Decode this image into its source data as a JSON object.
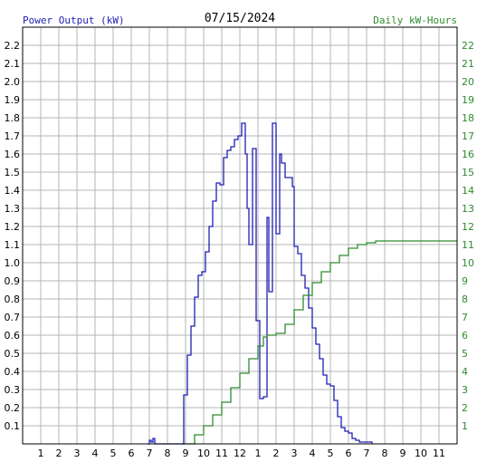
{
  "chart_data": {
    "type": "line",
    "title": "07/15/2024",
    "y_left_label": "Power Output (kW)",
    "y_right_label": "Daily kW-Hours",
    "x_tick_labels": [
      "1",
      "2",
      "3",
      "4",
      "5",
      "6",
      "7",
      "8",
      "9",
      "10",
      "11",
      "12",
      "1",
      "2",
      "3",
      "4",
      "5",
      "6",
      "7",
      "8",
      "9",
      "10",
      "11"
    ],
    "y_left_ticks": [
      "0.1",
      "0.2",
      "0.3",
      "0.4",
      "0.5",
      "0.6",
      "0.7",
      "0.8",
      "0.9",
      "1.0",
      "1.1",
      "1.2",
      "1.3",
      "1.4",
      "1.5",
      "1.6",
      "1.7",
      "1.8",
      "1.9",
      "2.0",
      "2.1",
      "2.2"
    ],
    "y_right_ticks": [
      "1",
      "2",
      "3",
      "4",
      "5",
      "6",
      "7",
      "8",
      "9",
      "10",
      "11",
      "12",
      "13",
      "14",
      "15",
      "16",
      "17",
      "18",
      "19",
      "20",
      "21",
      "22"
    ],
    "x_range_hours": [
      0,
      24
    ],
    "y_left_range": [
      0,
      2.3
    ],
    "y_right_range": [
      0,
      23
    ],
    "grid": true,
    "series": [
      {
        "name": "Power Output (kW)",
        "axis": "left",
        "color": "#1f1fb4",
        "points": [
          [
            6.9,
            0
          ],
          [
            7.0,
            0.02
          ],
          [
            7.1,
            0.01
          ],
          [
            7.2,
            0.03
          ],
          [
            7.3,
            0
          ],
          [
            8.8,
            0
          ],
          [
            8.9,
            0.27
          ],
          [
            9.1,
            0.49
          ],
          [
            9.3,
            0.65
          ],
          [
            9.5,
            0.81
          ],
          [
            9.7,
            0.93
          ],
          [
            9.9,
            0.95
          ],
          [
            10.1,
            1.06
          ],
          [
            10.3,
            1.2
          ],
          [
            10.5,
            1.34
          ],
          [
            10.7,
            1.44
          ],
          [
            10.9,
            1.43
          ],
          [
            11.1,
            1.58
          ],
          [
            11.3,
            1.62
          ],
          [
            11.5,
            1.64
          ],
          [
            11.7,
            1.68
          ],
          [
            11.9,
            1.7
          ],
          [
            12.1,
            1.77
          ],
          [
            12.3,
            1.6
          ],
          [
            12.4,
            1.3
          ],
          [
            12.5,
            1.1
          ],
          [
            12.7,
            1.63
          ],
          [
            12.9,
            0.68
          ],
          [
            13.1,
            0.25
          ],
          [
            13.3,
            0.26
          ],
          [
            13.5,
            1.25
          ],
          [
            13.6,
            0.84
          ],
          [
            13.8,
            1.77
          ],
          [
            14.0,
            1.16
          ],
          [
            14.2,
            1.6
          ],
          [
            14.3,
            1.55
          ],
          [
            14.5,
            1.47
          ],
          [
            14.7,
            1.47
          ],
          [
            14.9,
            1.42
          ],
          [
            15.0,
            1.09
          ],
          [
            15.2,
            1.05
          ],
          [
            15.4,
            0.93
          ],
          [
            15.6,
            0.86
          ],
          [
            15.8,
            0.75
          ],
          [
            16.0,
            0.64
          ],
          [
            16.2,
            0.55
          ],
          [
            16.4,
            0.47
          ],
          [
            16.6,
            0.38
          ],
          [
            16.8,
            0.33
          ],
          [
            17.0,
            0.32
          ],
          [
            17.2,
            0.24
          ],
          [
            17.4,
            0.15
          ],
          [
            17.6,
            0.09
          ],
          [
            17.8,
            0.07
          ],
          [
            18.0,
            0.06
          ],
          [
            18.2,
            0.03
          ],
          [
            18.4,
            0.02
          ],
          [
            18.6,
            0.01
          ],
          [
            19.0,
            0.01
          ],
          [
            19.3,
            0
          ]
        ]
      },
      {
        "name": "Daily kW-Hours",
        "axis": "right",
        "color": "#2e8b2e",
        "points": [
          [
            8.8,
            0
          ],
          [
            9.5,
            0.5
          ],
          [
            10.0,
            1.0
          ],
          [
            10.5,
            1.6
          ],
          [
            11.0,
            2.3
          ],
          [
            11.5,
            3.1
          ],
          [
            12.0,
            3.9
          ],
          [
            12.5,
            4.7
          ],
          [
            13.0,
            5.4
          ],
          [
            13.3,
            5.9
          ],
          [
            13.5,
            6.0
          ],
          [
            14.0,
            6.1
          ],
          [
            14.5,
            6.6
          ],
          [
            15.0,
            7.4
          ],
          [
            15.5,
            8.2
          ],
          [
            16.0,
            8.9
          ],
          [
            16.5,
            9.5
          ],
          [
            17.0,
            10.0
          ],
          [
            17.5,
            10.4
          ],
          [
            18.0,
            10.8
          ],
          [
            18.5,
            11.0
          ],
          [
            19.0,
            11.1
          ],
          [
            19.5,
            11.2
          ],
          [
            20.0,
            11.2
          ],
          [
            24.0,
            11.2
          ]
        ]
      }
    ]
  }
}
